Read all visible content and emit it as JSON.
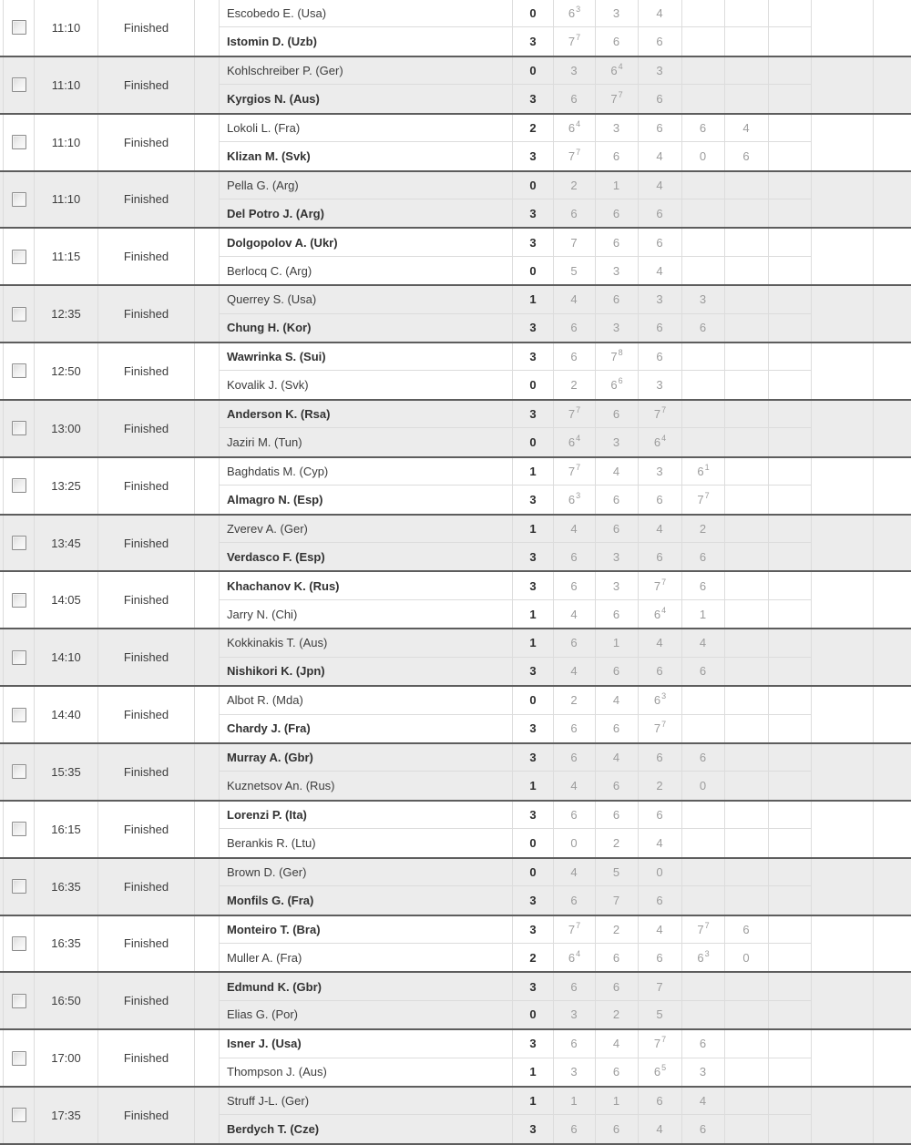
{
  "table": {
    "status_column": "match status",
    "colors": {
      "row_alt_background": "#ececec",
      "match_separator": "#5d5d5d",
      "grid_line": "#dcdcdc",
      "set_score_text": "#9c9c9c",
      "main_text": "#3d3d3d"
    },
    "matches": [
      {
        "time": "11:10",
        "status": "Finished",
        "players": [
          {
            "name": "Escobedo E. (Usa)",
            "winner": false,
            "total": "0",
            "sets": [
              {
                "v": "6",
                "sup": "3"
              },
              {
                "v": "3"
              },
              {
                "v": "4"
              }
            ]
          },
          {
            "name": "Istomin D. (Uzb)",
            "winner": true,
            "total": "3",
            "sets": [
              {
                "v": "7",
                "sup": "7"
              },
              {
                "v": "6"
              },
              {
                "v": "6"
              }
            ]
          }
        ]
      },
      {
        "time": "11:10",
        "status": "Finished",
        "players": [
          {
            "name": "Kohlschreiber P. (Ger)",
            "winner": false,
            "total": "0",
            "sets": [
              {
                "v": "3"
              },
              {
                "v": "6",
                "sup": "4"
              },
              {
                "v": "3"
              }
            ]
          },
          {
            "name": "Kyrgios N. (Aus)",
            "winner": true,
            "total": "3",
            "sets": [
              {
                "v": "6"
              },
              {
                "v": "7",
                "sup": "7"
              },
              {
                "v": "6"
              }
            ]
          }
        ]
      },
      {
        "time": "11:10",
        "status": "Finished",
        "players": [
          {
            "name": "Lokoli L. (Fra)",
            "winner": false,
            "total": "2",
            "sets": [
              {
                "v": "6",
                "sup": "4"
              },
              {
                "v": "3"
              },
              {
                "v": "6"
              },
              {
                "v": "6"
              },
              {
                "v": "4"
              }
            ]
          },
          {
            "name": "Klizan M. (Svk)",
            "winner": true,
            "total": "3",
            "sets": [
              {
                "v": "7",
                "sup": "7"
              },
              {
                "v": "6"
              },
              {
                "v": "4"
              },
              {
                "v": "0"
              },
              {
                "v": "6"
              }
            ]
          }
        ]
      },
      {
        "time": "11:10",
        "status": "Finished",
        "players": [
          {
            "name": "Pella G. (Arg)",
            "winner": false,
            "total": "0",
            "sets": [
              {
                "v": "2"
              },
              {
                "v": "1"
              },
              {
                "v": "4"
              }
            ]
          },
          {
            "name": "Del Potro J. (Arg)",
            "winner": true,
            "total": "3",
            "sets": [
              {
                "v": "6"
              },
              {
                "v": "6"
              },
              {
                "v": "6"
              }
            ]
          }
        ]
      },
      {
        "time": "11:15",
        "status": "Finished",
        "players": [
          {
            "name": "Dolgopolov A. (Ukr)",
            "winner": true,
            "total": "3",
            "sets": [
              {
                "v": "7"
              },
              {
                "v": "6"
              },
              {
                "v": "6"
              }
            ]
          },
          {
            "name": "Berlocq C. (Arg)",
            "winner": false,
            "total": "0",
            "sets": [
              {
                "v": "5"
              },
              {
                "v": "3"
              },
              {
                "v": "4"
              }
            ]
          }
        ]
      },
      {
        "time": "12:35",
        "status": "Finished",
        "players": [
          {
            "name": "Querrey S. (Usa)",
            "winner": false,
            "total": "1",
            "sets": [
              {
                "v": "4"
              },
              {
                "v": "6"
              },
              {
                "v": "3"
              },
              {
                "v": "3"
              }
            ]
          },
          {
            "name": "Chung H. (Kor)",
            "winner": true,
            "total": "3",
            "sets": [
              {
                "v": "6"
              },
              {
                "v": "3"
              },
              {
                "v": "6"
              },
              {
                "v": "6"
              }
            ]
          }
        ]
      },
      {
        "time": "12:50",
        "status": "Finished",
        "players": [
          {
            "name": "Wawrinka S. (Sui)",
            "winner": true,
            "total": "3",
            "sets": [
              {
                "v": "6"
              },
              {
                "v": "7",
                "sup": "8"
              },
              {
                "v": "6"
              }
            ]
          },
          {
            "name": "Kovalik J. (Svk)",
            "winner": false,
            "total": "0",
            "sets": [
              {
                "v": "2"
              },
              {
                "v": "6",
                "sup": "6"
              },
              {
                "v": "3"
              }
            ]
          }
        ]
      },
      {
        "time": "13:00",
        "status": "Finished",
        "players": [
          {
            "name": "Anderson K. (Rsa)",
            "winner": true,
            "total": "3",
            "sets": [
              {
                "v": "7",
                "sup": "7"
              },
              {
                "v": "6"
              },
              {
                "v": "7",
                "sup": "7"
              }
            ]
          },
          {
            "name": "Jaziri M. (Tun)",
            "winner": false,
            "total": "0",
            "sets": [
              {
                "v": "6",
                "sup": "4"
              },
              {
                "v": "3"
              },
              {
                "v": "6",
                "sup": "4"
              }
            ]
          }
        ]
      },
      {
        "time": "13:25",
        "status": "Finished",
        "players": [
          {
            "name": "Baghdatis M. (Cyp)",
            "winner": false,
            "total": "1",
            "sets": [
              {
                "v": "7",
                "sup": "7"
              },
              {
                "v": "4"
              },
              {
                "v": "3"
              },
              {
                "v": "6",
                "sup": "1"
              }
            ]
          },
          {
            "name": "Almagro N. (Esp)",
            "winner": true,
            "total": "3",
            "sets": [
              {
                "v": "6",
                "sup": "3"
              },
              {
                "v": "6"
              },
              {
                "v": "6"
              },
              {
                "v": "7",
                "sup": "7"
              }
            ]
          }
        ]
      },
      {
        "time": "13:45",
        "status": "Finished",
        "players": [
          {
            "name": "Zverev A. (Ger)",
            "winner": false,
            "total": "1",
            "sets": [
              {
                "v": "4"
              },
              {
                "v": "6"
              },
              {
                "v": "4"
              },
              {
                "v": "2"
              }
            ]
          },
          {
            "name": "Verdasco F. (Esp)",
            "winner": true,
            "total": "3",
            "sets": [
              {
                "v": "6"
              },
              {
                "v": "3"
              },
              {
                "v": "6"
              },
              {
                "v": "6"
              }
            ]
          }
        ]
      },
      {
        "time": "14:05",
        "status": "Finished",
        "players": [
          {
            "name": "Khachanov K. (Rus)",
            "winner": true,
            "total": "3",
            "sets": [
              {
                "v": "6"
              },
              {
                "v": "3"
              },
              {
                "v": "7",
                "sup": "7"
              },
              {
                "v": "6"
              }
            ]
          },
          {
            "name": "Jarry N. (Chi)",
            "winner": false,
            "total": "1",
            "sets": [
              {
                "v": "4"
              },
              {
                "v": "6"
              },
              {
                "v": "6",
                "sup": "4"
              },
              {
                "v": "1"
              }
            ]
          }
        ]
      },
      {
        "time": "14:10",
        "status": "Finished",
        "players": [
          {
            "name": "Kokkinakis T. (Aus)",
            "winner": false,
            "total": "1",
            "sets": [
              {
                "v": "6"
              },
              {
                "v": "1"
              },
              {
                "v": "4"
              },
              {
                "v": "4"
              }
            ]
          },
          {
            "name": "Nishikori K. (Jpn)",
            "winner": true,
            "total": "3",
            "sets": [
              {
                "v": "4"
              },
              {
                "v": "6"
              },
              {
                "v": "6"
              },
              {
                "v": "6"
              }
            ]
          }
        ]
      },
      {
        "time": "14:40",
        "status": "Finished",
        "players": [
          {
            "name": "Albot R. (Mda)",
            "winner": false,
            "total": "0",
            "sets": [
              {
                "v": "2"
              },
              {
                "v": "4"
              },
              {
                "v": "6",
                "sup": "3"
              }
            ]
          },
          {
            "name": "Chardy J. (Fra)",
            "winner": true,
            "total": "3",
            "sets": [
              {
                "v": "6"
              },
              {
                "v": "6"
              },
              {
                "v": "7",
                "sup": "7"
              }
            ]
          }
        ]
      },
      {
        "time": "15:35",
        "status": "Finished",
        "players": [
          {
            "name": "Murray A. (Gbr)",
            "winner": true,
            "total": "3",
            "sets": [
              {
                "v": "6"
              },
              {
                "v": "4"
              },
              {
                "v": "6"
              },
              {
                "v": "6"
              }
            ]
          },
          {
            "name": "Kuznetsov An. (Rus)",
            "winner": false,
            "total": "1",
            "sets": [
              {
                "v": "4"
              },
              {
                "v": "6"
              },
              {
                "v": "2"
              },
              {
                "v": "0"
              }
            ]
          }
        ]
      },
      {
        "time": "16:15",
        "status": "Finished",
        "players": [
          {
            "name": "Lorenzi P. (Ita)",
            "winner": true,
            "total": "3",
            "sets": [
              {
                "v": "6"
              },
              {
                "v": "6"
              },
              {
                "v": "6"
              }
            ]
          },
          {
            "name": "Berankis R. (Ltu)",
            "winner": false,
            "total": "0",
            "sets": [
              {
                "v": "0"
              },
              {
                "v": "2"
              },
              {
                "v": "4"
              }
            ]
          }
        ]
      },
      {
        "time": "16:35",
        "status": "Finished",
        "players": [
          {
            "name": "Brown D. (Ger)",
            "winner": false,
            "total": "0",
            "sets": [
              {
                "v": "4"
              },
              {
                "v": "5"
              },
              {
                "v": "0"
              }
            ]
          },
          {
            "name": "Monfils G. (Fra)",
            "winner": true,
            "total": "3",
            "sets": [
              {
                "v": "6"
              },
              {
                "v": "7"
              },
              {
                "v": "6"
              }
            ]
          }
        ]
      },
      {
        "time": "16:35",
        "status": "Finished",
        "players": [
          {
            "name": "Monteiro T. (Bra)",
            "winner": true,
            "total": "3",
            "sets": [
              {
                "v": "7",
                "sup": "7"
              },
              {
                "v": "2"
              },
              {
                "v": "4"
              },
              {
                "v": "7",
                "sup": "7"
              },
              {
                "v": "6"
              }
            ]
          },
          {
            "name": "Muller A. (Fra)",
            "winner": false,
            "total": "2",
            "sets": [
              {
                "v": "6",
                "sup": "4"
              },
              {
                "v": "6"
              },
              {
                "v": "6"
              },
              {
                "v": "6",
                "sup": "3"
              },
              {
                "v": "0"
              }
            ]
          }
        ]
      },
      {
        "time": "16:50",
        "status": "Finished",
        "players": [
          {
            "name": "Edmund K. (Gbr)",
            "winner": true,
            "total": "3",
            "sets": [
              {
                "v": "6"
              },
              {
                "v": "6"
              },
              {
                "v": "7"
              }
            ]
          },
          {
            "name": "Elias G. (Por)",
            "winner": false,
            "total": "0",
            "sets": [
              {
                "v": "3"
              },
              {
                "v": "2"
              },
              {
                "v": "5"
              }
            ]
          }
        ]
      },
      {
        "time": "17:00",
        "status": "Finished",
        "players": [
          {
            "name": "Isner J. (Usa)",
            "winner": true,
            "total": "3",
            "sets": [
              {
                "v": "6"
              },
              {
                "v": "4"
              },
              {
                "v": "7",
                "sup": "7"
              },
              {
                "v": "6"
              }
            ]
          },
          {
            "name": "Thompson J. (Aus)",
            "winner": false,
            "total": "1",
            "sets": [
              {
                "v": "3"
              },
              {
                "v": "6"
              },
              {
                "v": "6",
                "sup": "5"
              },
              {
                "v": "3"
              }
            ]
          }
        ]
      },
      {
        "time": "17:35",
        "status": "Finished",
        "players": [
          {
            "name": "Struff J-L. (Ger)",
            "winner": false,
            "total": "1",
            "sets": [
              {
                "v": "1"
              },
              {
                "v": "1"
              },
              {
                "v": "6"
              },
              {
                "v": "4"
              }
            ]
          },
          {
            "name": "Berdych T. (Cze)",
            "winner": true,
            "total": "3",
            "sets": [
              {
                "v": "6"
              },
              {
                "v": "6"
              },
              {
                "v": "4"
              },
              {
                "v": "6"
              }
            ]
          }
        ]
      }
    ]
  }
}
